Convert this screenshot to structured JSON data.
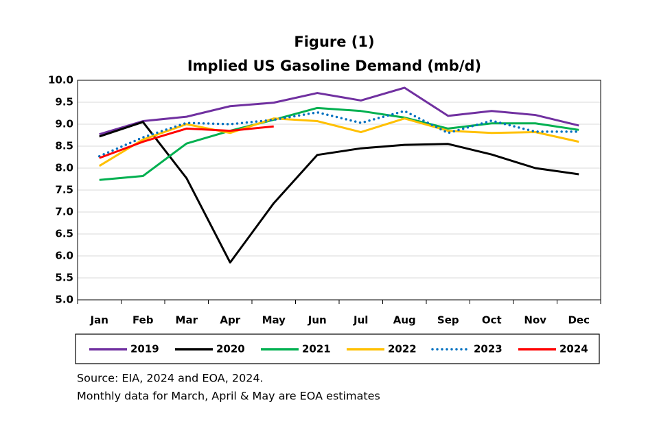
{
  "chart_data": {
    "type": "line",
    "title": "Figure (1)",
    "subtitle": "Implied US Gasoline Demand (mb/d)",
    "categories": [
      "Jan",
      "Feb",
      "Mar",
      "Apr",
      "May",
      "Jun",
      "Jul",
      "Aug",
      "Sep",
      "Oct",
      "Nov",
      "Dec"
    ],
    "series": [
      {
        "name": "2019",
        "color": "#7030a0",
        "values": [
          8.77,
          9.07,
          9.17,
          9.41,
          9.49,
          9.71,
          9.54,
          9.83,
          9.19,
          9.3,
          9.21,
          8.97
        ]
      },
      {
        "name": "2020",
        "color": "#000000",
        "values": [
          8.72,
          9.05,
          7.77,
          5.85,
          7.2,
          8.3,
          8.45,
          8.53,
          8.55,
          8.31,
          8.0,
          7.86
        ]
      },
      {
        "name": "2021",
        "color": "#00b050",
        "values": [
          7.73,
          7.82,
          8.56,
          8.85,
          9.1,
          9.37,
          9.3,
          9.15,
          8.9,
          9.02,
          9.02,
          8.87
        ]
      },
      {
        "name": "2022",
        "color": "#ffc000",
        "values": [
          8.05,
          8.65,
          9.0,
          8.8,
          9.13,
          9.07,
          8.82,
          9.13,
          8.85,
          8.8,
          8.82,
          8.6
        ]
      },
      {
        "name": "2023",
        "color": "#0070c0",
        "dash": "dotted",
        "values": [
          8.27,
          8.7,
          9.03,
          9.0,
          9.1,
          9.27,
          9.03,
          9.3,
          8.8,
          9.08,
          8.83,
          8.83
        ]
      },
      {
        "name": "2024",
        "color": "#ff0000",
        "values": [
          8.23,
          8.6,
          8.9,
          8.85,
          8.95,
          null,
          null,
          null,
          null,
          null,
          null,
          null
        ]
      }
    ],
    "ylim": [
      5,
      10
    ],
    "yticks": [
      {
        "value": 5,
        "label": "5.0"
      },
      5.5,
      {
        "value": 6,
        "label": "6.0"
      },
      6.5,
      {
        "value": 7,
        "label": "7.0"
      },
      7.5,
      {
        "value": 8,
        "label": "8.0"
      },
      8.5,
      {
        "value": 9,
        "label": "9.0"
      },
      9.5,
      {
        "value": 10,
        "label": "10.0"
      }
    ],
    "grid": true,
    "legend": "bottom",
    "notes": [
      "Source: EIA, 2024 and EOA, 2024.",
      "Monthly data for March, April & May are EOA estimates"
    ]
  }
}
